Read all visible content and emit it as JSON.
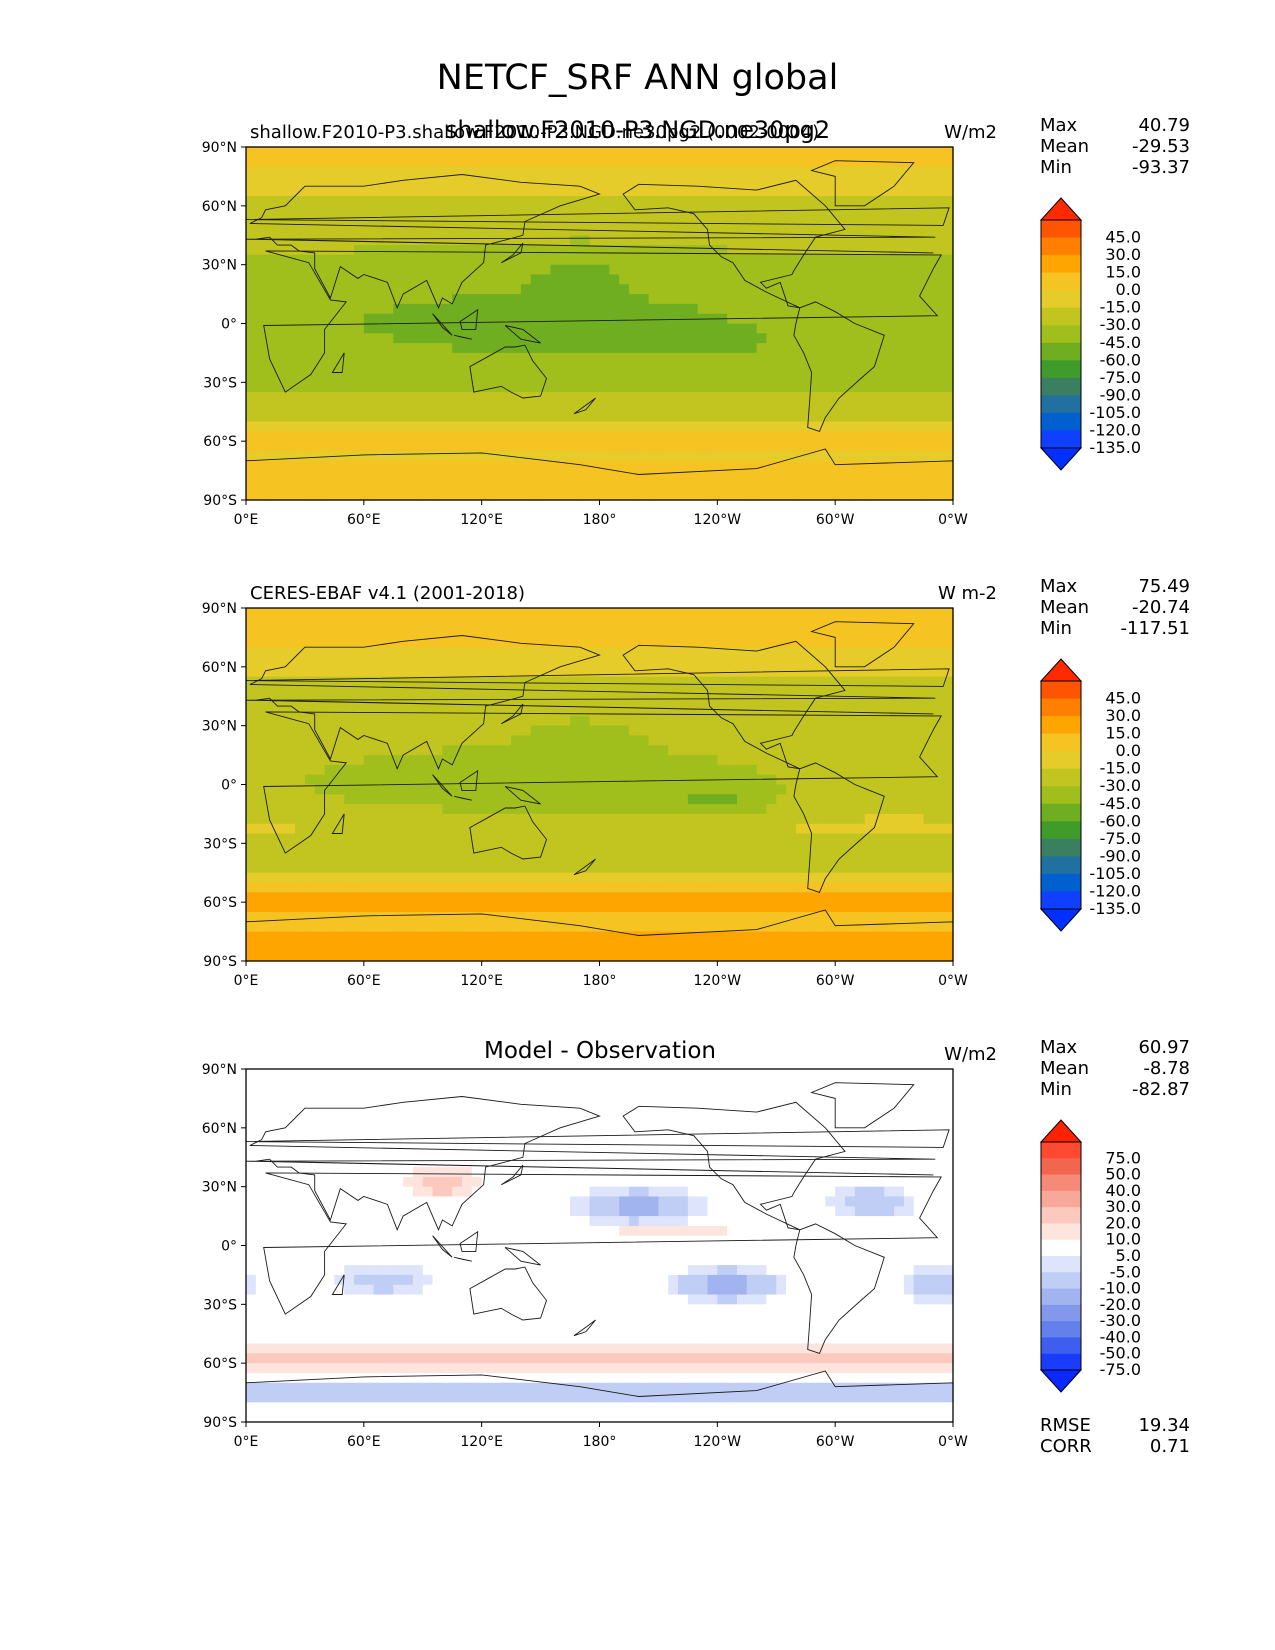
{
  "figure": {
    "title": "NETCF_SRF ANN global",
    "overlap_title": "shallow.F2010-P3.NGD.ne30pg2"
  },
  "panels": [
    {
      "left_title": "shallow.F2010-P3.shallow.F2010-P3.NGD.ne30pg2 (0002-0004)",
      "center_title": "",
      "units": "W/m2",
      "stats": {
        "max_label": "Max",
        "max": "40.79",
        "mean_label": "Mean",
        "mean": "-29.53",
        "min_label": "Min",
        "min": "-93.37"
      },
      "colorbar": {
        "labels": [
          "45.0",
          "30.0",
          "15.0",
          "0.0",
          "-15.0",
          "-30.0",
          "-45.0",
          "-60.0",
          "-75.0",
          "-90.0",
          "-105.0",
          "-120.0",
          "-135.0"
        ],
        "colors": [
          "#ff2a00",
          "#ff5500",
          "#ff7f00",
          "#ffa500",
          "#f5c322",
          "#e5cc2a",
          "#c2c41f",
          "#a0bf1c",
          "#6fae20",
          "#3f9c2a",
          "#3a8060",
          "#2070a0",
          "#0060cf",
          "#1040ff",
          "#0030ff"
        ]
      },
      "map": {
        "kind": "model"
      }
    },
    {
      "left_title": "CERES-EBAF v4.1 (2001-2018)",
      "center_title": "",
      "units": "W m-2",
      "stats": {
        "max_label": "Max",
        "max": "75.49",
        "mean_label": "Mean",
        "mean": "-20.74",
        "min_label": "Min",
        "min": "-117.51"
      },
      "colorbar": {
        "labels": [
          "45.0",
          "30.0",
          "15.0",
          "0.0",
          "-15.0",
          "-30.0",
          "-45.0",
          "-60.0",
          "-75.0",
          "-90.0",
          "-105.0",
          "-120.0",
          "-135.0"
        ],
        "colors": [
          "#ff2a00",
          "#ff5500",
          "#ff7f00",
          "#ffa500",
          "#f5c322",
          "#e5cc2a",
          "#c2c41f",
          "#a0bf1c",
          "#6fae20",
          "#3f9c2a",
          "#3a8060",
          "#2070a0",
          "#0060cf",
          "#1040ff",
          "#0030ff"
        ]
      },
      "map": {
        "kind": "obs"
      }
    },
    {
      "left_title": "",
      "center_title": "Model - Observation",
      "units": "W/m2",
      "stats": {
        "max_label": "Max",
        "max": "60.97",
        "mean_label": "Mean",
        "mean": "-8.78",
        "min_label": "Min",
        "min": "-82.87"
      },
      "colorbar": {
        "labels": [
          "75.0",
          "50.0",
          "40.0",
          "30.0",
          "20.0",
          "10.0",
          "5.0",
          "-5.0",
          "-10.0",
          "-20.0",
          "-30.0",
          "-40.0",
          "-50.0",
          "-75.0"
        ],
        "colors": [
          "#ff2200",
          "#ff4a30",
          "#f2654f",
          "#f58a78",
          "#f8a898",
          "#fbc9bd",
          "#fde4dd",
          "#ffffff",
          "#dde4fb",
          "#c0cdf5",
          "#a2b4ef",
          "#8398ea",
          "#6480ea",
          "#3e5ef0",
          "#1a3cff",
          "#0a28ff"
        ]
      },
      "map": {
        "kind": "diff"
      },
      "metrics": {
        "rmse_label": "RMSE",
        "rmse": "19.34",
        "corr_label": "CORR",
        "corr": "0.71"
      }
    }
  ],
  "axes": {
    "lat_ticks": [
      "90°N",
      "60°N",
      "30°N",
      "0°",
      "30°S",
      "60°S",
      "90°S"
    ],
    "lon_ticks": [
      "0°E",
      "60°E",
      "120°E",
      "180°",
      "120°W",
      "60°W",
      "0°W"
    ]
  }
}
